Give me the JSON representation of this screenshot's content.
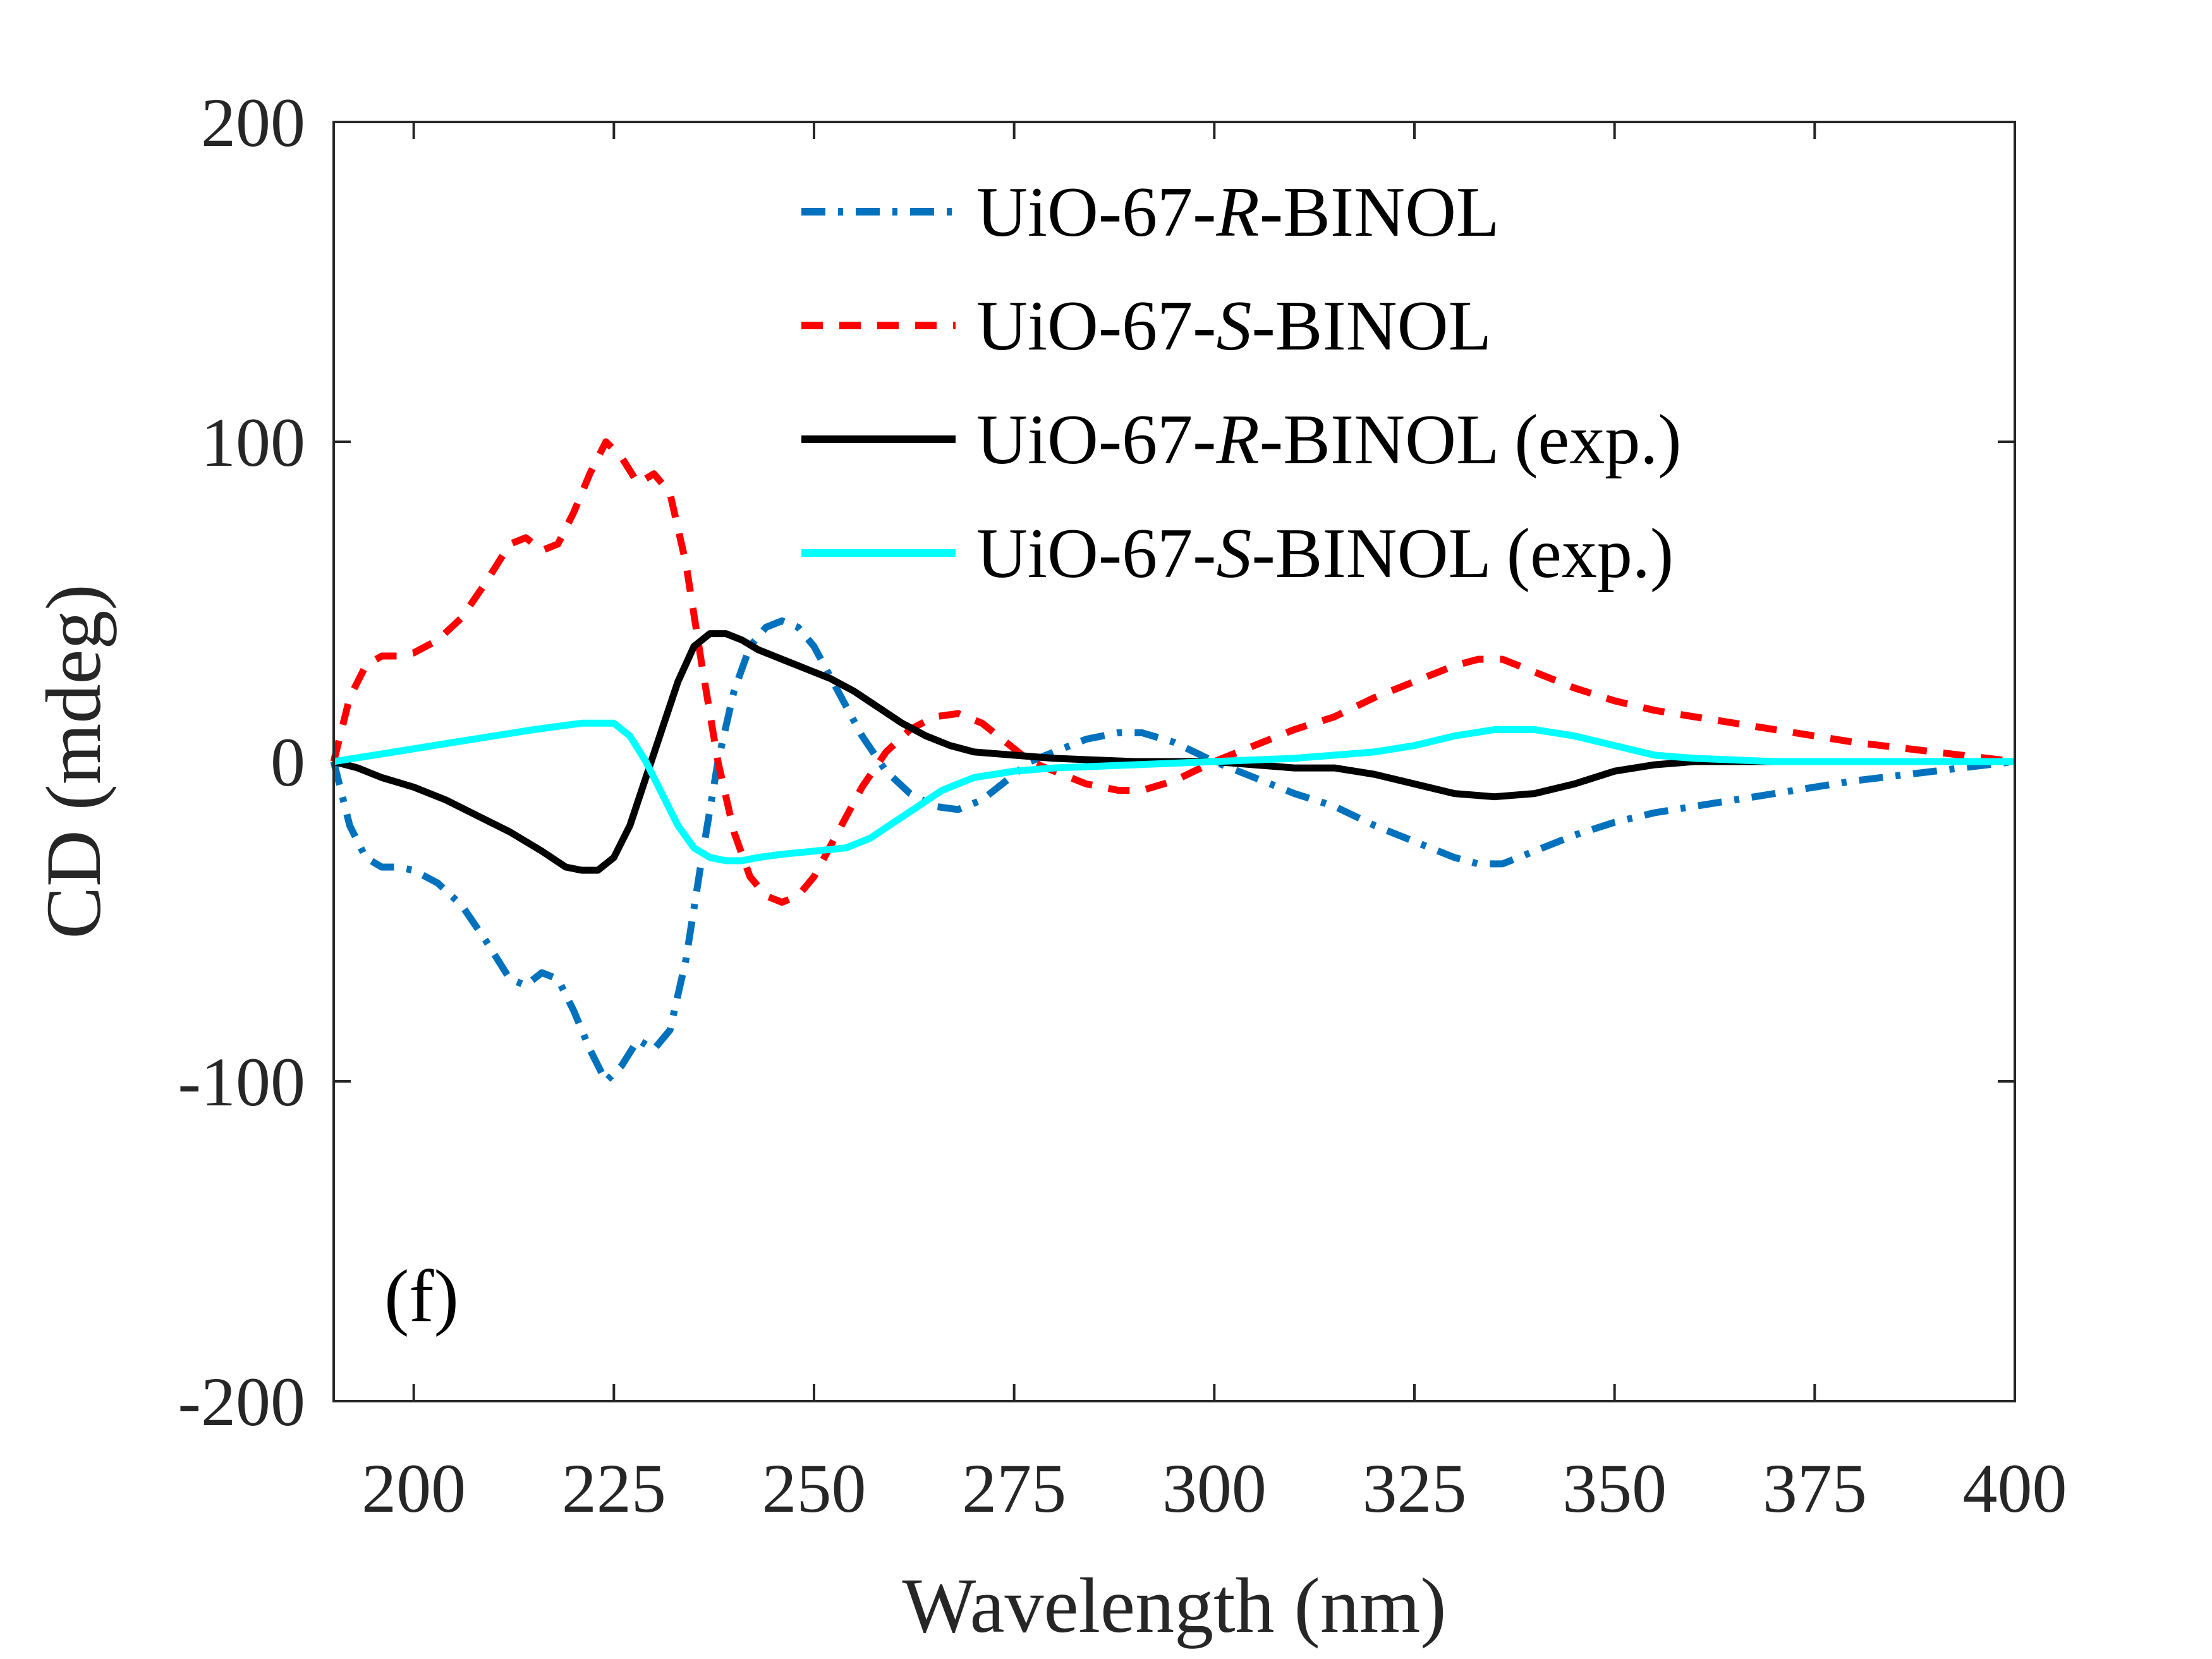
{
  "chart_data": {
    "type": "line",
    "xlabel": "Wavelength (nm)",
    "ylabel": "CD (mdeg)",
    "xlim": [
      190,
      400
    ],
    "ylim": [
      -200,
      200
    ],
    "xticks": [
      200,
      225,
      250,
      275,
      300,
      325,
      350,
      375,
      400
    ],
    "yticks": [
      -200,
      -100,
      0,
      100,
      200
    ],
    "xtick_labels": [
      "200",
      "225",
      "250",
      "275",
      "300",
      "325",
      "350",
      "375",
      "400"
    ],
    "ytick_labels": [
      "-200",
      "-100",
      "0",
      "100",
      "200"
    ],
    "annotation": "(f)",
    "legend_position": "top-right",
    "series": [
      {
        "name_prefix": "UiO-67-",
        "name_italic": "R",
        "name_suffix": "-BINOL",
        "color": "#0072BD",
        "style": "dashdot",
        "x": [
          190,
          192,
          194,
          196,
          198,
          200,
          203,
          206,
          209,
          212,
          214,
          216,
          218,
          220,
          222,
          224,
          226,
          228,
          230,
          232,
          234,
          236,
          238,
          240,
          242,
          244,
          246,
          248,
          250,
          253,
          256,
          259,
          262,
          265,
          268,
          271,
          274,
          277,
          280,
          284,
          288,
          291,
          295,
          300,
          305,
          310,
          315,
          320,
          325,
          330,
          333,
          336,
          340,
          345,
          350,
          355,
          360,
          370,
          380,
          390,
          400
        ],
        "y": [
          0,
          -20,
          -30,
          -33,
          -33,
          -34,
          -38,
          -45,
          -56,
          -68,
          -70,
          -66,
          -68,
          -78,
          -90,
          -100,
          -95,
          -87,
          -90,
          -84,
          -62,
          -30,
          0,
          22,
          36,
          42,
          44,
          42,
          36,
          22,
          8,
          -3,
          -10,
          -14,
          -15,
          -12,
          -6,
          0,
          3,
          7,
          9,
          9,
          6,
          0,
          -5,
          -10,
          -14,
          -20,
          -25,
          -30,
          -32,
          -32,
          -28,
          -23,
          -19,
          -16,
          -14,
          -10,
          -6,
          -3,
          0
        ]
      },
      {
        "name_prefix": "UiO-67-",
        "name_italic": "S",
        "name_suffix": "-BINOL",
        "color": "#FF0000",
        "style": "dashed",
        "x": [
          190,
          192,
          194,
          196,
          198,
          200,
          203,
          206,
          209,
          212,
          214,
          216,
          218,
          220,
          222,
          224,
          226,
          228,
          230,
          232,
          234,
          236,
          238,
          240,
          242,
          244,
          246,
          248,
          250,
          253,
          256,
          259,
          262,
          265,
          268,
          271,
          274,
          277,
          280,
          284,
          288,
          291,
          295,
          300,
          305,
          310,
          315,
          320,
          325,
          330,
          333,
          336,
          340,
          345,
          350,
          355,
          360,
          370,
          380,
          390,
          400
        ],
        "y": [
          0,
          20,
          30,
          33,
          33,
          34,
          38,
          45,
          56,
          68,
          70,
          66,
          68,
          78,
          90,
          100,
          95,
          87,
          90,
          84,
          62,
          30,
          0,
          -22,
          -36,
          -42,
          -44,
          -42,
          -36,
          -22,
          -8,
          3,
          10,
          14,
          15,
          12,
          6,
          0,
          -3,
          -7,
          -9,
          -9,
          -6,
          0,
          5,
          10,
          14,
          20,
          25,
          30,
          32,
          32,
          28,
          23,
          19,
          16,
          14,
          10,
          6,
          3,
          0
        ]
      },
      {
        "name_prefix": "UiO-67-",
        "name_italic": "R",
        "name_suffix": "-BINOL (exp.)",
        "color": "#000000",
        "style": "solid",
        "x": [
          190,
          193,
          196,
          200,
          204,
          208,
          212,
          216,
          219,
          221,
          222,
          223,
          225,
          227,
          229,
          231,
          233,
          235,
          237,
          239,
          241,
          243,
          246,
          249,
          252,
          255,
          258,
          261,
          264,
          267,
          270,
          275,
          280,
          285,
          290,
          295,
          300,
          305,
          310,
          315,
          320,
          325,
          330,
          335,
          340,
          345,
          350,
          355,
          360,
          370,
          380,
          390,
          400
        ],
        "y": [
          0,
          -2,
          -5,
          -8,
          -12,
          -17,
          -22,
          -28,
          -33,
          -34,
          -34,
          -34,
          -30,
          -20,
          -5,
          10,
          25,
          36,
          40,
          40,
          38,
          35,
          32,
          29,
          26,
          22,
          17,
          12,
          8,
          5,
          3,
          2,
          1,
          0.5,
          0,
          0,
          0,
          -1,
          -2,
          -2,
          -4,
          -7,
          -10,
          -11,
          -10,
          -7,
          -3,
          -1,
          0,
          0,
          0,
          0,
          0
        ]
      },
      {
        "name_prefix": "UiO-67-",
        "name_italic": "S",
        "name_suffix": "-BINOL (exp.)",
        "color": "#00FFFF",
        "style": "solid",
        "x": [
          190,
          195,
          200,
          205,
          210,
          215,
          218,
          221,
          223,
          225,
          227,
          229,
          231,
          233,
          235,
          237,
          239,
          241,
          243,
          246,
          250,
          254,
          257,
          260,
          263,
          266,
          270,
          275,
          280,
          290,
          300,
          310,
          320,
          325,
          330,
          335,
          340,
          345,
          350,
          355,
          360,
          370,
          380,
          390,
          400
        ],
        "y": [
          0,
          2,
          4,
          6,
          8,
          10,
          11,
          12,
          12,
          12,
          8,
          0,
          -10,
          -20,
          -27,
          -30,
          -31,
          -31,
          -30,
          -29,
          -28,
          -27,
          -24,
          -19,
          -14,
          -9,
          -5,
          -3,
          -2,
          -1,
          0,
          1,
          3,
          5,
          8,
          10,
          10,
          8,
          5,
          2,
          1,
          0,
          0,
          0,
          0
        ]
      }
    ]
  }
}
